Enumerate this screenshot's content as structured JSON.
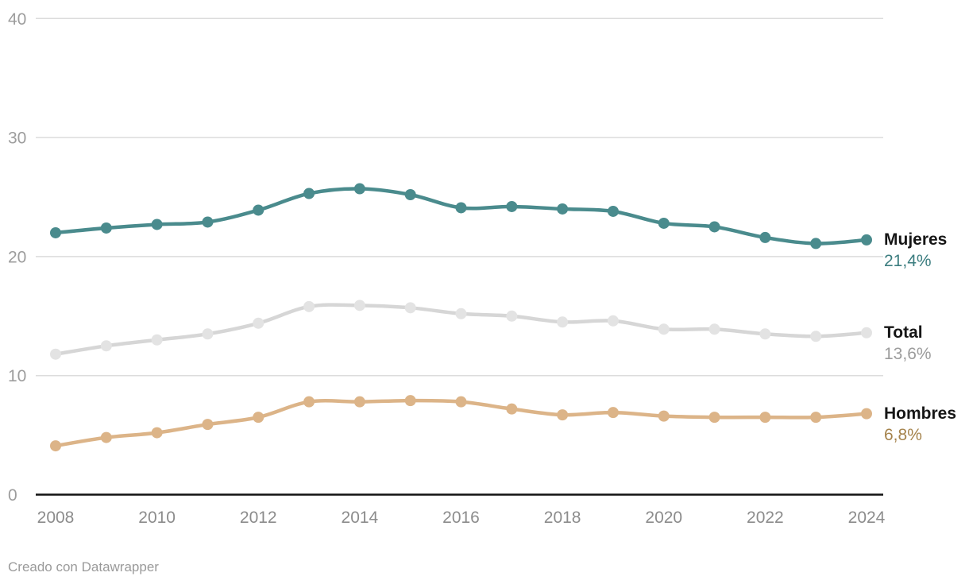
{
  "chart_data": {
    "type": "line",
    "x": [
      "2008",
      "2009",
      "2010",
      "2011",
      "2012",
      "2013",
      "2014",
      "2015",
      "2016",
      "2017",
      "2018",
      "2019",
      "2020",
      "2021",
      "2022",
      "2023",
      "2024"
    ],
    "series": [
      {
        "name": "Mujeres",
        "values": [
          22.0,
          22.4,
          22.7,
          22.9,
          23.9,
          25.3,
          25.7,
          25.2,
          24.1,
          24.2,
          24.0,
          23.8,
          22.8,
          22.5,
          21.6,
          21.1,
          21.4
        ],
        "color": "#4a8b8d",
        "dot_color": "#4a8b8d",
        "label_color": "#3b7d7f",
        "end_label": "21,4%"
      },
      {
        "name": "Total",
        "values": [
          11.8,
          12.5,
          13.0,
          13.5,
          14.4,
          15.8,
          15.9,
          15.7,
          15.2,
          15.0,
          14.5,
          14.6,
          13.9,
          13.9,
          13.5,
          13.3,
          13.6
        ],
        "color": "#d6d6d6",
        "dot_color": "#e3e3e3",
        "label_color": "#9c9c9c",
        "end_label": "13,6%"
      },
      {
        "name": "Hombres",
        "values": [
          4.1,
          4.8,
          5.2,
          5.9,
          6.5,
          7.8,
          7.8,
          7.9,
          7.8,
          7.2,
          6.7,
          6.9,
          6.6,
          6.5,
          6.5,
          6.5,
          6.8
        ],
        "color": "#dcb488",
        "dot_color": "#dcb488",
        "label_color": "#a5834c",
        "end_label": "6,8%"
      }
    ],
    "title": "",
    "xlabel": "",
    "ylabel": "",
    "ylim": [
      0,
      40
    ],
    "y_ticks": [
      0,
      10,
      20,
      30,
      40
    ],
    "x_tick_labels": [
      "2008",
      "2010",
      "2012",
      "2014",
      "2016",
      "2018",
      "2020",
      "2022",
      "2024"
    ],
    "grid": "horizontal",
    "legend_position": "right-end-labels",
    "colors": {
      "grid_line": "#dcdcdc",
      "axis_line": "#121212",
      "y_tick_text": "#9d9d9d",
      "x_tick_text": "#8c8c8c",
      "series_name_text": "#161616"
    }
  },
  "footer": {
    "attribution": "Creado con Datawrapper"
  }
}
